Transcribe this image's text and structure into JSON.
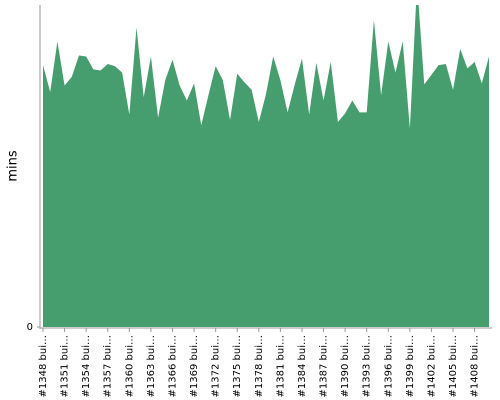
{
  "chart_data": {
    "type": "area",
    "y_label": "mins",
    "color": "#469e6e",
    "categories": [
      "#1348 bui…",
      null,
      null,
      "#1351 bui…",
      null,
      null,
      "#1354 bui…",
      null,
      null,
      "#1357 bui…",
      null,
      null,
      "#1360 bui…",
      null,
      null,
      "#1363 bui…",
      null,
      null,
      "#1366 bui…",
      null,
      null,
      "#1369 bui…",
      null,
      null,
      "#1372 bui…",
      null,
      null,
      "#1375 bui…",
      null,
      null,
      "#1378 bui…",
      null,
      null,
      "#1381 bui…",
      null,
      null,
      "#1384 bui…",
      null,
      null,
      "#1387 bui…",
      null,
      null,
      "#1390 bui…",
      null,
      null,
      "#1393 bui…",
      null,
      null,
      "#1396 bui…",
      null,
      null,
      "#1399 bui…",
      null,
      null,
      "#1402 bui…",
      null,
      null,
      "#1405 bui…",
      null,
      null,
      "#1408 bui…",
      null,
      null
    ],
    "values": [
      24.4,
      21.9,
      26.6,
      22.5,
      23.3,
      25.3,
      25.2,
      24.0,
      23.9,
      24.5,
      24.3,
      23.7,
      19.8,
      27.9,
      21.4,
      25.2,
      19.5,
      23.0,
      24.9,
      22.5,
      21.1,
      22.7,
      18.8,
      21.6,
      24.3,
      23.0,
      19.3,
      23.6,
      22.8,
      22.1,
      19.1,
      21.7,
      25.2,
      23.0,
      20.0,
      22.6,
      25.0,
      19.8,
      24.6,
      21.1,
      24.7,
      19.1,
      19.9,
      21.1,
      20.0,
      20.0,
      28.6,
      21.6,
      26.6,
      23.7,
      26.6,
      18.5,
      32,
      22.6,
      23.5,
      24.4,
      24.5,
      22.1,
      25.9,
      24.1,
      24.7,
      22.7,
      25.2
    ],
    "ylim": [
      0,
      30
    ],
    "yticks": [
      0
    ]
  }
}
